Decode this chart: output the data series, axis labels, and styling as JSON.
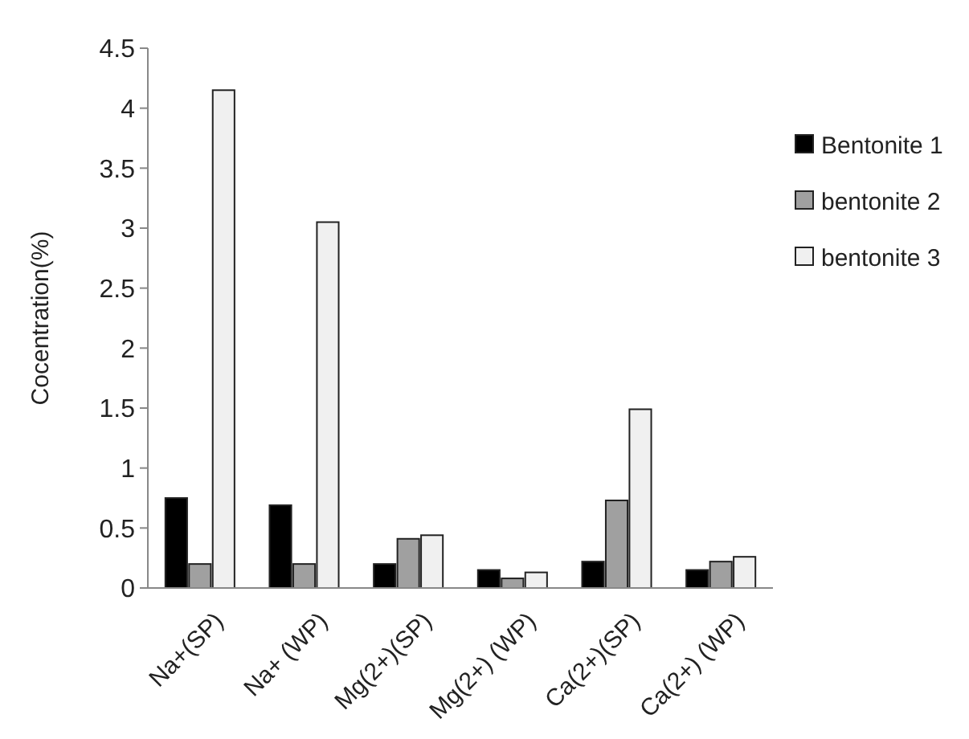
{
  "chart_data": {
    "type": "bar",
    "ylabel": "Cocentration(%)",
    "categories": [
      "Na+(SP)",
      "Na+ (WP)",
      "Mg(2+)(SP)",
      "Mg(2+) (WP)",
      "Ca(2+)(SP)",
      "Ca(2+) (WP)"
    ],
    "series": [
      {
        "name": "Bentonite 1",
        "color": "#000000",
        "values": [
          0.75,
          0.69,
          0.2,
          0.15,
          0.22,
          0.15
        ]
      },
      {
        "name": "bentonite 2",
        "color": "#a0a0a0",
        "values": [
          0.2,
          0.2,
          0.41,
          0.08,
          0.73,
          0.22
        ]
      },
      {
        "name": "bentonite 3",
        "color": "#f0f0f0",
        "values": [
          4.15,
          3.05,
          0.44,
          0.13,
          1.49,
          0.26
        ]
      }
    ],
    "ylim": [
      0,
      4.5
    ],
    "yticks": [
      0,
      0.5,
      1,
      1.5,
      2,
      2.5,
      3,
      3.5,
      4,
      4.5
    ],
    "grid": false,
    "legend": "right"
  }
}
